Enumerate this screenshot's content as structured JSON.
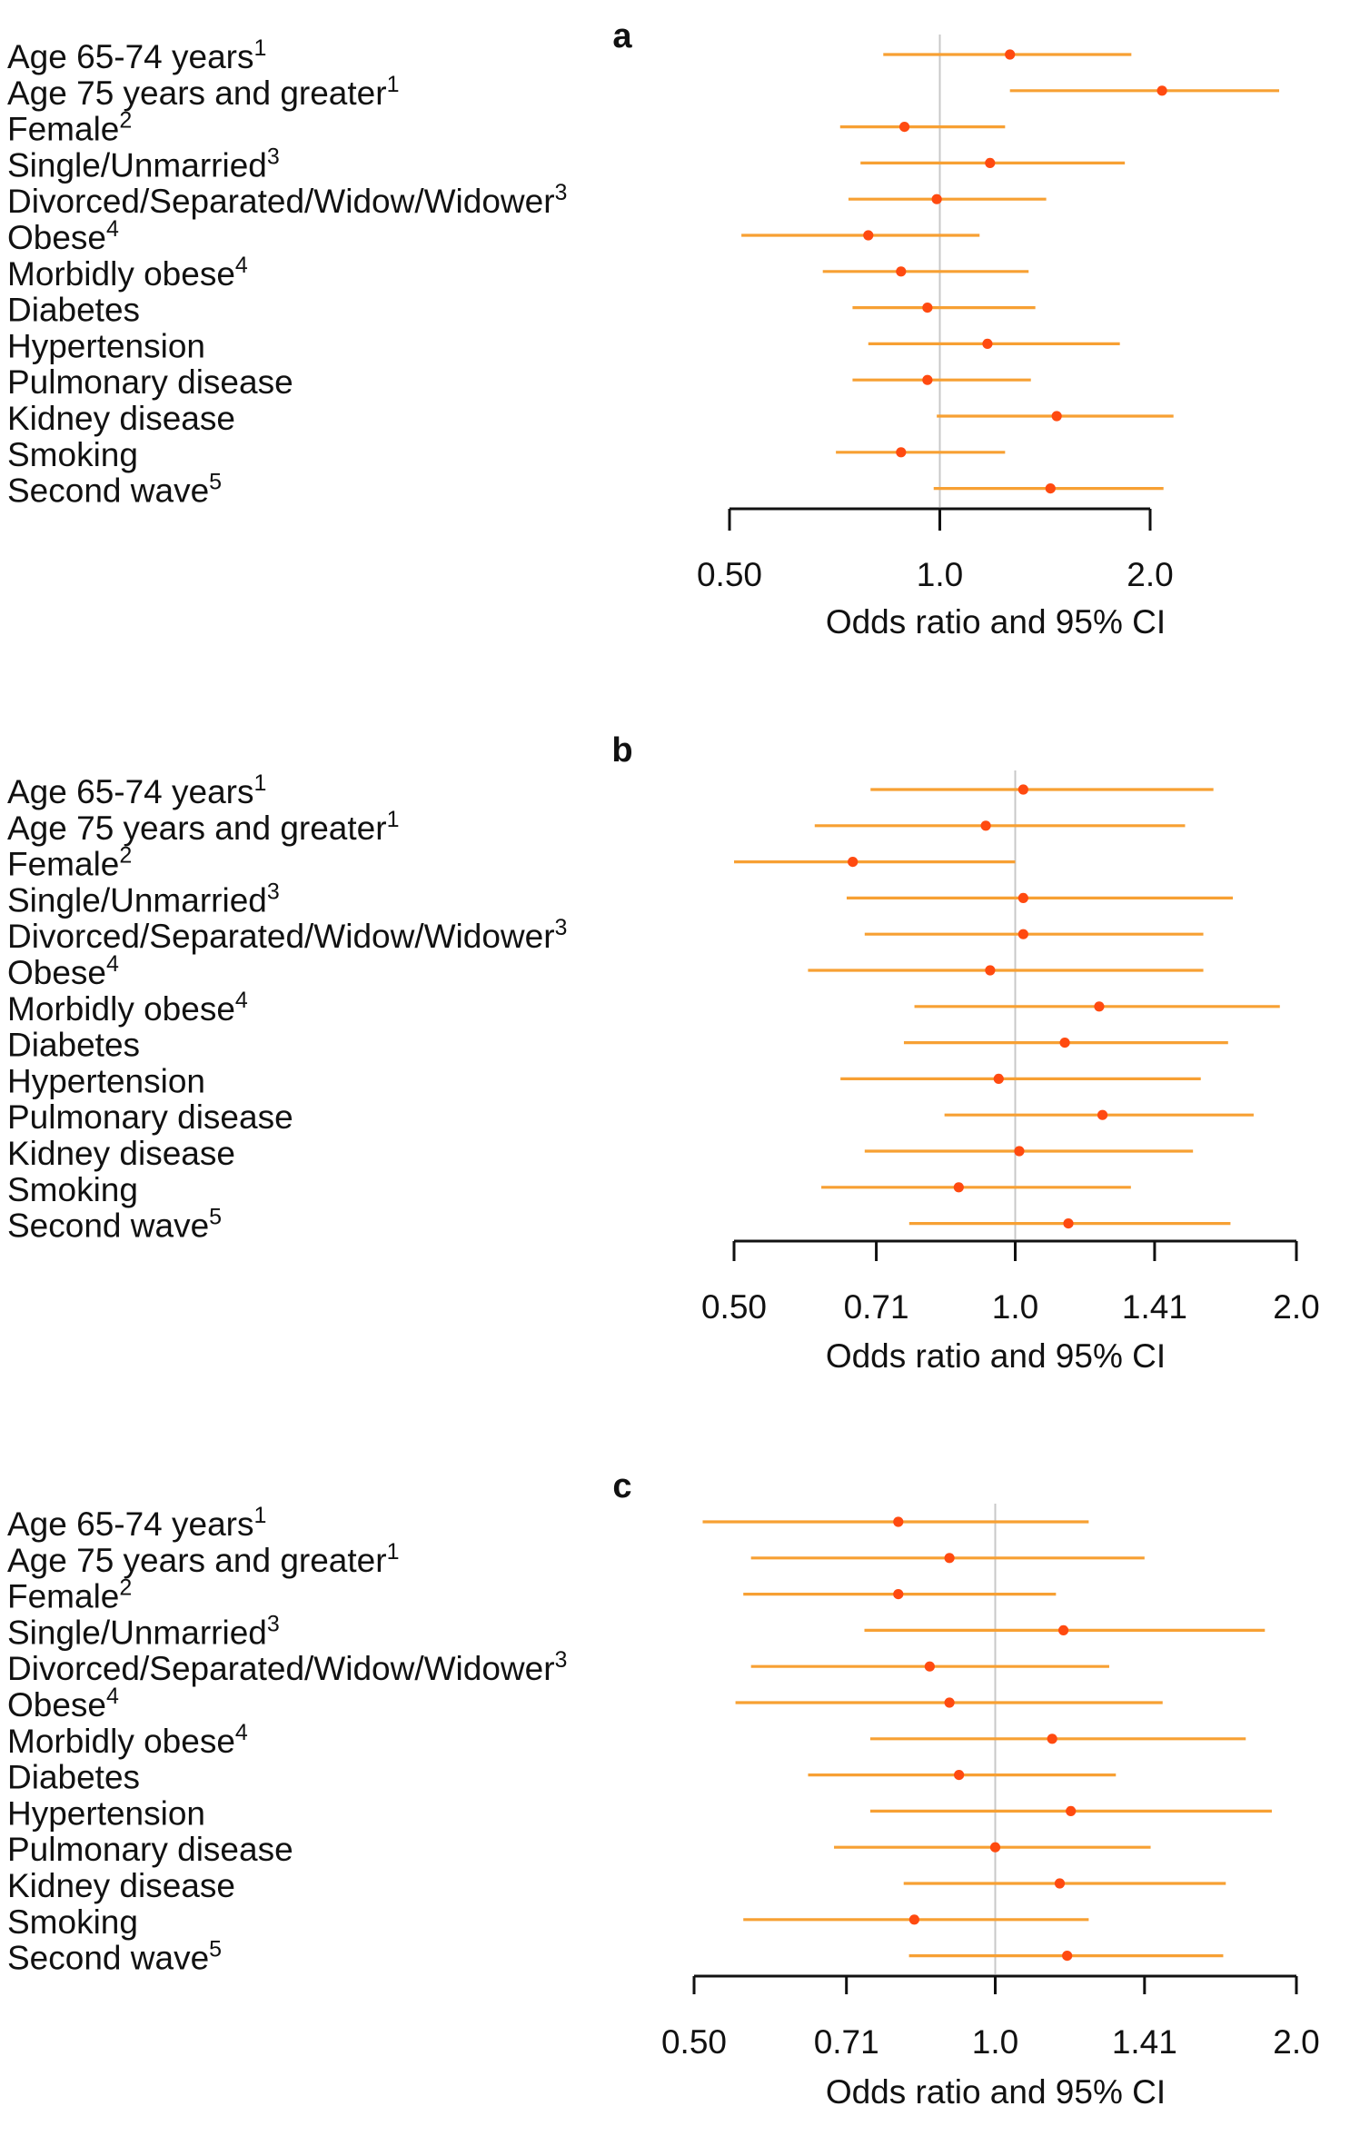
{
  "chart_data": [
    {
      "type": "forest",
      "panel": "a",
      "xlabel": "Odds ratio and 95% CI",
      "xscale": "log2",
      "xlim": [
        0.5,
        2.0
      ],
      "ticks": [
        0.5,
        1.0,
        2.0
      ],
      "tick_labels": [
        "0.50",
        "1.0",
        "2.0"
      ],
      "reference_line": 1.0,
      "rows": [
        {
          "label": "Age 65-74 years",
          "sup": "1",
          "or": 1.26,
          "lo": 0.83,
          "hi": 1.88
        },
        {
          "label": "Age 75 years and greater",
          "sup": "1",
          "or": 2.08,
          "lo": 1.26,
          "hi": 3.06
        },
        {
          "label": "Female",
          "sup": "2",
          "or": 0.89,
          "lo": 0.72,
          "hi": 1.24
        },
        {
          "label": "Single/Unmarried",
          "sup": "3",
          "or": 1.18,
          "lo": 0.77,
          "hi": 1.84
        },
        {
          "label": "Divorced/Separated/Widow/Widower",
          "sup": "3",
          "or": 0.99,
          "lo": 0.74,
          "hi": 1.42
        },
        {
          "label": "Obese",
          "sup": "4",
          "or": 0.79,
          "lo": 0.52,
          "hi": 1.14
        },
        {
          "label": "Morbidly obese",
          "sup": "4",
          "or": 0.88,
          "lo": 0.68,
          "hi": 1.34
        },
        {
          "label": "Diabetes",
          "sup": "",
          "or": 0.96,
          "lo": 0.75,
          "hi": 1.37
        },
        {
          "label": "Hypertension",
          "sup": "",
          "or": 1.17,
          "lo": 0.79,
          "hi": 1.81
        },
        {
          "label": "Pulmonary disease",
          "sup": "",
          "or": 0.96,
          "lo": 0.75,
          "hi": 1.35
        },
        {
          "label": "Kidney disease",
          "sup": "",
          "or": 1.47,
          "lo": 0.99,
          "hi": 2.16
        },
        {
          "label": "Smoking",
          "sup": "",
          "or": 0.88,
          "lo": 0.71,
          "hi": 1.24
        },
        {
          "label": "Second wave",
          "sup": "5",
          "or": 1.44,
          "lo": 0.98,
          "hi": 2.09
        }
      ]
    },
    {
      "type": "forest",
      "panel": "b",
      "xlabel": "Odds ratio and 95% CI",
      "xscale": "log2",
      "xlim": [
        0.5,
        2.0
      ],
      "ticks": [
        0.5,
        0.71,
        1.0,
        1.41,
        2.0
      ],
      "tick_labels": [
        "0.50",
        "0.71",
        "1.0",
        "1.41",
        "2.0"
      ],
      "reference_line": 1.0,
      "rows": [
        {
          "label": "Age 65-74 years",
          "sup": "1",
          "or": 1.02,
          "lo": 0.7,
          "hi": 1.63
        },
        {
          "label": "Age 75 years and greater",
          "sup": "1",
          "or": 0.93,
          "lo": 0.61,
          "hi": 1.52
        },
        {
          "label": "Female",
          "sup": "2",
          "or": 0.67,
          "lo": 0.5,
          "hi": 1.0
        },
        {
          "label": "Single/Unmarried",
          "sup": "3",
          "or": 1.02,
          "lo": 0.66,
          "hi": 1.71
        },
        {
          "label": "Divorced/Separated/Widow/Widower",
          "sup": "3",
          "or": 1.02,
          "lo": 0.69,
          "hi": 1.59
        },
        {
          "label": "Obese",
          "sup": "4",
          "or": 0.94,
          "lo": 0.6,
          "hi": 1.59
        },
        {
          "label": "Morbidly obese",
          "sup": "4",
          "or": 1.23,
          "lo": 0.78,
          "hi": 1.92
        },
        {
          "label": "Diabetes",
          "sup": "",
          "or": 1.13,
          "lo": 0.76,
          "hi": 1.69
        },
        {
          "label": "Hypertension",
          "sup": "",
          "or": 0.96,
          "lo": 0.65,
          "hi": 1.58
        },
        {
          "label": "Pulmonary disease",
          "sup": "",
          "or": 1.24,
          "lo": 0.84,
          "hi": 1.8
        },
        {
          "label": "Kidney disease",
          "sup": "",
          "or": 1.01,
          "lo": 0.69,
          "hi": 1.55
        },
        {
          "label": "Smoking",
          "sup": "",
          "or": 0.87,
          "lo": 0.62,
          "hi": 1.33
        },
        {
          "label": "Second wave",
          "sup": "5",
          "or": 1.14,
          "lo": 0.77,
          "hi": 1.7
        }
      ]
    },
    {
      "type": "forest",
      "panel": "c",
      "xlabel": "Odds ratio and 95% CI",
      "xscale": "log2",
      "xlim": [
        0.5,
        2.0
      ],
      "ticks": [
        0.5,
        0.71,
        1.0,
        1.41,
        2.0
      ],
      "tick_labels": [
        "0.50",
        "0.71",
        "1.0",
        "1.41",
        "2.0"
      ],
      "reference_line": 1.0,
      "rows": [
        {
          "label": "Age 65-74 years",
          "sup": "1",
          "or": 0.8,
          "lo": 0.51,
          "hi": 1.24
        },
        {
          "label": "Age 75 years and greater",
          "sup": "1",
          "or": 0.9,
          "lo": 0.57,
          "hi": 1.41
        },
        {
          "label": "Female",
          "sup": "2",
          "or": 0.8,
          "lo": 0.56,
          "hi": 1.15
        },
        {
          "label": "Single/Unmarried",
          "sup": "3",
          "or": 1.17,
          "lo": 0.74,
          "hi": 1.86
        },
        {
          "label": "Divorced/Separated/Widow/Widower",
          "sup": "3",
          "or": 0.86,
          "lo": 0.57,
          "hi": 1.3
        },
        {
          "label": "Obese",
          "sup": "4",
          "or": 0.9,
          "lo": 0.55,
          "hi": 1.47
        },
        {
          "label": "Morbidly obese",
          "sup": "4",
          "or": 1.14,
          "lo": 0.75,
          "hi": 1.78
        },
        {
          "label": "Diabetes",
          "sup": "",
          "or": 0.92,
          "lo": 0.65,
          "hi": 1.32
        },
        {
          "label": "Hypertension",
          "sup": "",
          "or": 1.19,
          "lo": 0.75,
          "hi": 1.89
        },
        {
          "label": "Pulmonary disease",
          "sup": "",
          "or": 1.0,
          "lo": 0.69,
          "hi": 1.43
        },
        {
          "label": "Kidney disease",
          "sup": "",
          "or": 1.16,
          "lo": 0.81,
          "hi": 1.7
        },
        {
          "label": "Smoking",
          "sup": "",
          "or": 0.83,
          "lo": 0.56,
          "hi": 1.24
        },
        {
          "label": "Second wave",
          "sup": "5",
          "or": 1.18,
          "lo": 0.82,
          "hi": 1.69
        }
      ]
    }
  ],
  "colors": {
    "ci_line": "#f7a033",
    "point": "#ff4a10",
    "reference_line": "#c8c8c8",
    "axis": "#111111",
    "text": "#111111"
  }
}
